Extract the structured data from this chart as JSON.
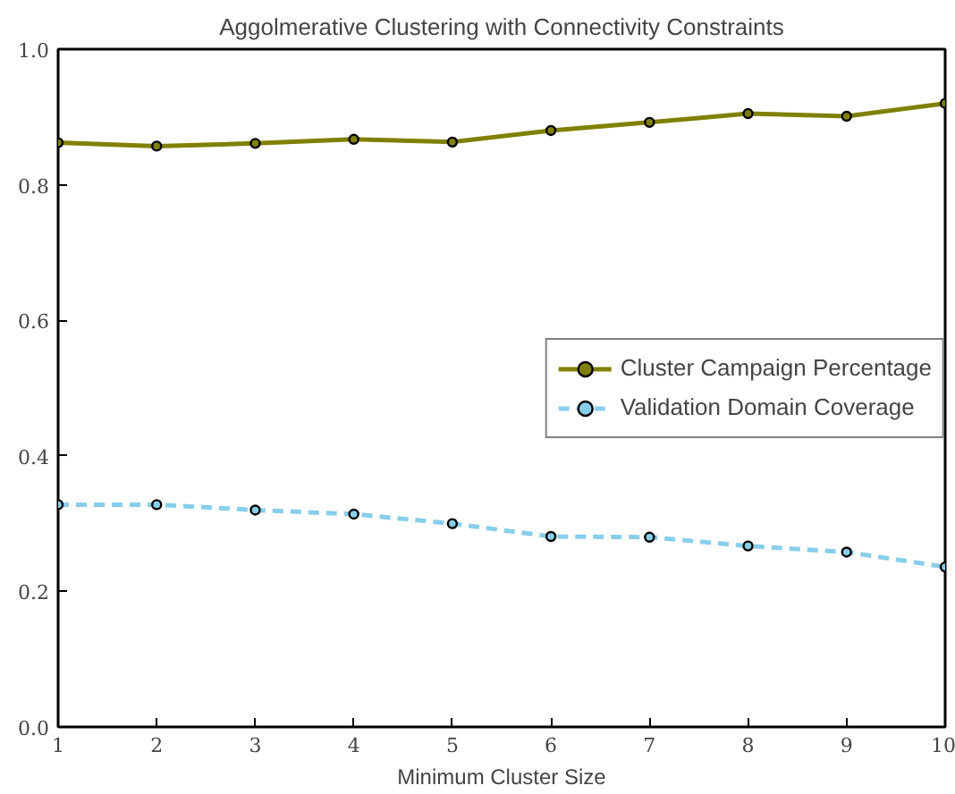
{
  "chart_data": {
    "type": "line",
    "title": "Aggolmerative Clustering with Connectivity Constraints",
    "xlabel": "Minimum Cluster Size",
    "x": [
      1,
      2,
      3,
      4,
      5,
      6,
      7,
      8,
      9,
      10
    ],
    "series": [
      {
        "name": "Cluster Campaign Percentage",
        "color": "#808000",
        "line_style": "solid",
        "values": [
          0.862,
          0.857,
          0.861,
          0.867,
          0.863,
          0.88,
          0.892,
          0.905,
          0.901,
          0.92
        ]
      },
      {
        "name": "Validation Domain Coverage",
        "color": "#87ceeb",
        "line_style": "dashed",
        "values": [
          0.328,
          0.328,
          0.32,
          0.314,
          0.3,
          0.281,
          0.28,
          0.267,
          0.258,
          0.236
        ]
      }
    ],
    "xlim": [
      1,
      10
    ],
    "xticks": [
      1,
      2,
      3,
      4,
      5,
      6,
      7,
      8,
      9,
      10
    ],
    "ylim": [
      0,
      1
    ],
    "yticks": [
      {
        "value": 0,
        "label": "0.0"
      },
      {
        "value": 0.2,
        "label": "0.2"
      },
      {
        "value": 0.4,
        "label": "0.4"
      },
      {
        "value": 0.6,
        "label": "0.6"
      },
      {
        "value": 0.8,
        "label": "0.8"
      },
      {
        "value": 1,
        "label": "1.0"
      }
    ],
    "marker": "circle",
    "grid": false,
    "legend": "center right"
  }
}
